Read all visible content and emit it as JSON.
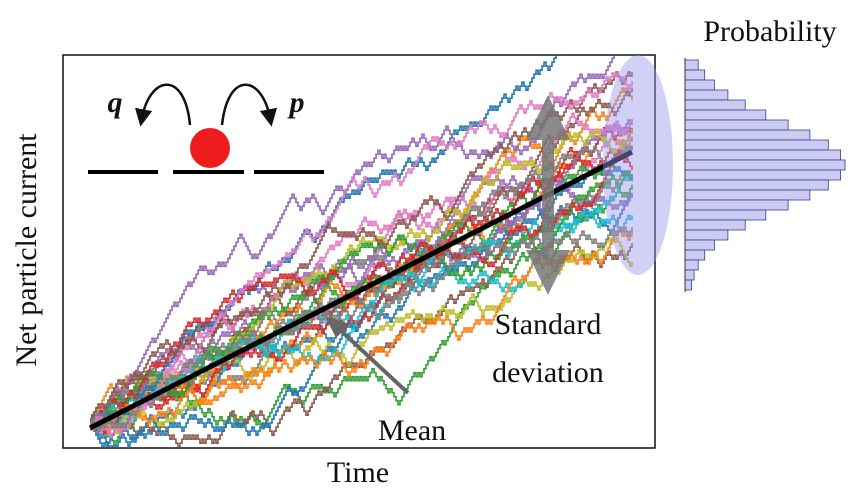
{
  "title": "Probability",
  "axes": {
    "y_label": "Net particle current",
    "x_label": "Time"
  },
  "annotations": {
    "mean": "Mean",
    "std_line1": "Standard",
    "std_line2": "deviation"
  },
  "hopping": {
    "left_rate": "q",
    "right_rate": "p"
  }
}
